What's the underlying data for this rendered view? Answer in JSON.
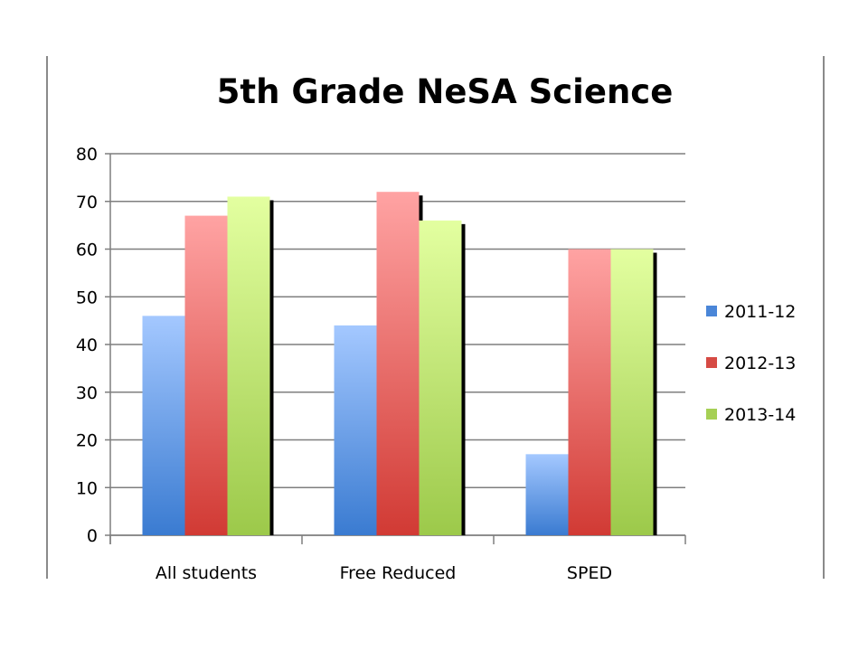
{
  "colors": {
    "series_top": [
      "#a4c8ff",
      "#ffa3a3",
      "#e3ffa0"
    ],
    "series_bottom": [
      "#3a7bd1",
      "#d13a34",
      "#9cc94a"
    ],
    "legend_swatch": [
      "#4a86d8",
      "#d64a44",
      "#a6d055"
    ],
    "grid": "#7f7f7f",
    "shadow": "#000000"
  },
  "chart_data": {
    "type": "bar",
    "title": "5th Grade NeSA Science",
    "categories": [
      "All students",
      "Free Reduced",
      "SPED"
    ],
    "series": [
      {
        "name": "2011-12",
        "values": [
          46,
          44,
          17
        ]
      },
      {
        "name": "2012-13",
        "values": [
          67,
          72,
          60
        ]
      },
      {
        "name": "2013-14",
        "values": [
          71,
          66,
          60
        ]
      }
    ],
    "yticks": [
      "0",
      "10",
      "20",
      "30",
      "40",
      "50",
      "60",
      "70",
      "80"
    ],
    "ylim": [
      0,
      80
    ],
    "xlabel": "",
    "ylabel": "",
    "grid": true,
    "legend_position": "right"
  }
}
